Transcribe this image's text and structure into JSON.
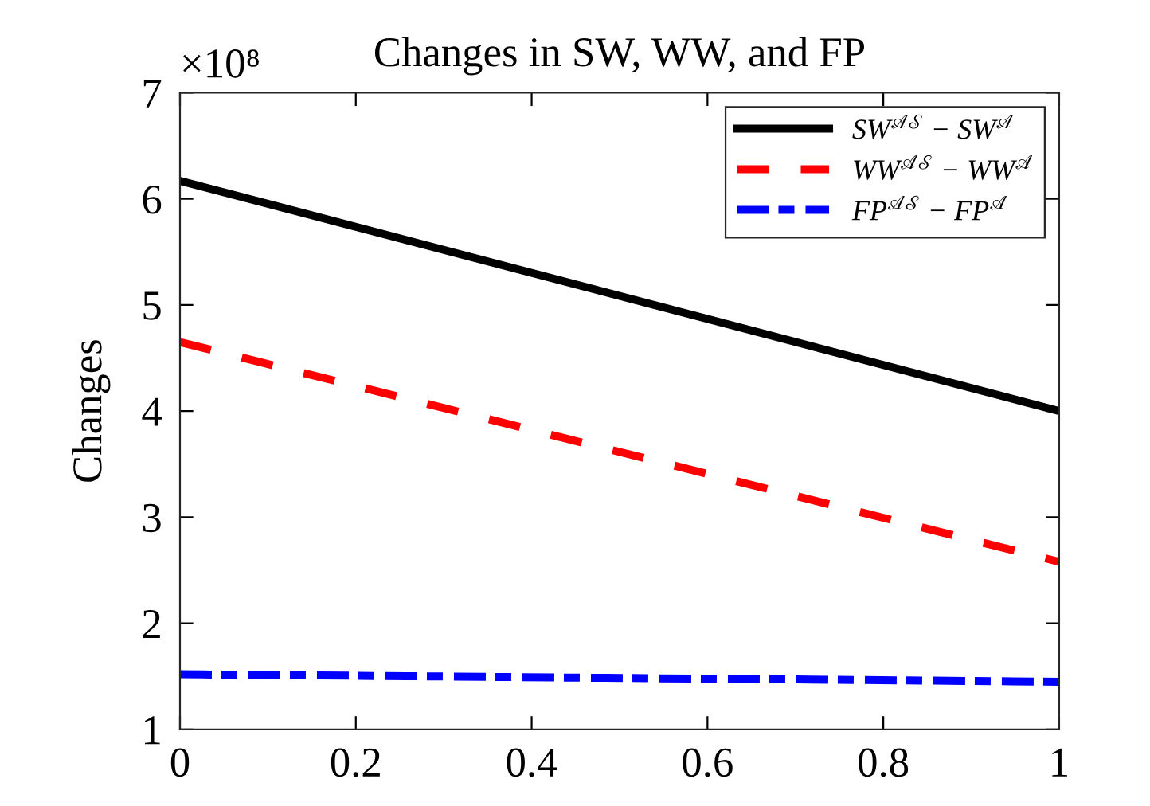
{
  "chart_data": {
    "type": "line",
    "title": "Changes in SW, WW, and FP",
    "ylabel": "Changes",
    "annotations": [
      "×10⁸"
    ],
    "x": [
      0,
      1
    ],
    "series": [
      {
        "name": "SW$^{𝒜𝒮}$ − SW$^{𝒜}$",
        "color": "#000000",
        "line_style": "solid",
        "values": [
          6.17,
          4.0
        ]
      },
      {
        "name": "WW$^{𝒜𝒮}$ − WW$^{𝒜}$",
        "color": "#ff0000",
        "line_style": "dashed",
        "values": [
          4.65,
          2.58
        ]
      },
      {
        "name": "FP$^{𝒜𝒮}$ − FP$^{𝒜}$",
        "color": "#0000ff",
        "line_style": "dashdot",
        "values": [
          1.52,
          1.45
        ]
      }
    ],
    "xlim": [
      0,
      1
    ],
    "xticks": [
      0,
      0.2,
      0.4,
      0.6,
      0.8,
      1
    ],
    "ylim": [
      1,
      7
    ],
    "yticks": [
      1,
      2,
      3,
      4,
      5,
      6,
      7
    ],
    "legend": "top right",
    "grid": false
  }
}
